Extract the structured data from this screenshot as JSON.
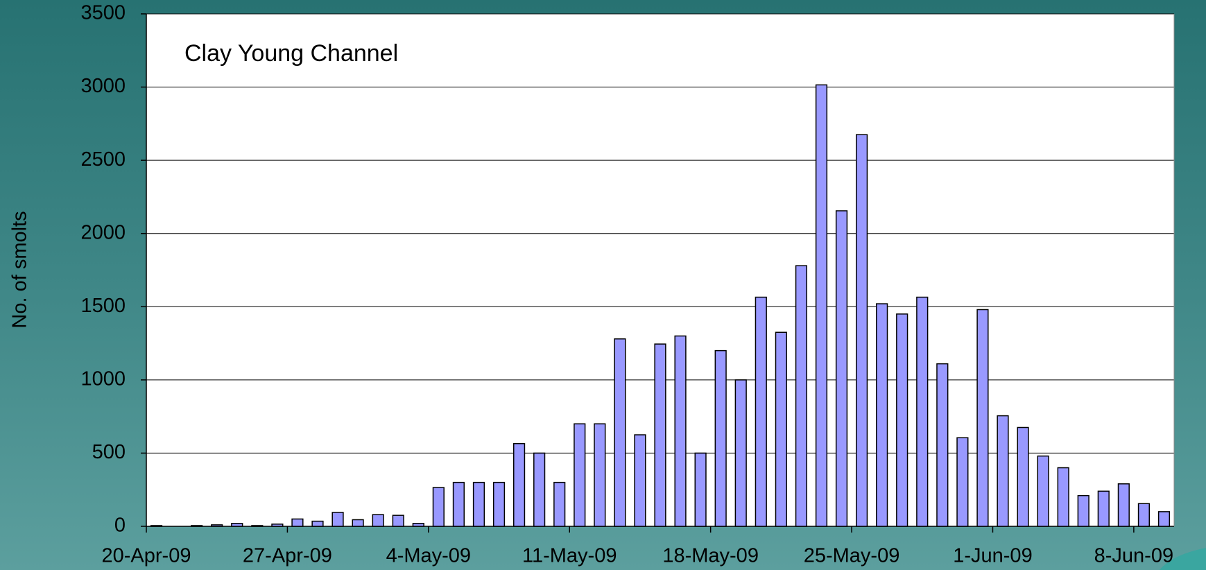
{
  "chart_data": {
    "type": "bar",
    "title": "Clay Young Channel",
    "y_label": "No. of smolts",
    "categories": [
      "20-Apr-09",
      null,
      null,
      null,
      null,
      null,
      null,
      "27-Apr-09",
      null,
      null,
      null,
      null,
      null,
      null,
      "4-May-09",
      null,
      null,
      null,
      null,
      null,
      null,
      "11-May-09",
      null,
      null,
      null,
      null,
      null,
      null,
      "18-May-09",
      null,
      null,
      null,
      null,
      null,
      null,
      "25-May-09",
      null,
      null,
      null,
      null,
      null,
      null,
      "1-Jun-09",
      null,
      null,
      null,
      null,
      null,
      null,
      "8-Jun-09",
      null
    ],
    "values": [
      5,
      0,
      5,
      10,
      20,
      5,
      15,
      50,
      35,
      95,
      45,
      80,
      75,
      20,
      265,
      300,
      300,
      300,
      565,
      500,
      300,
      700,
      700,
      1280,
      625,
      1245,
      1300,
      500,
      1200,
      1000,
      1565,
      1325,
      1780,
      3015,
      2155,
      2675,
      1520,
      1450,
      1565,
      1110,
      605,
      1480,
      755,
      675,
      480,
      400,
      210,
      240,
      290,
      155,
      100
    ],
    "color": "#9999ff",
    "ylim": [
      0,
      3500
    ],
    "yticks": [
      0,
      500,
      1000,
      1500,
      2000,
      2500,
      3000,
      3500
    ],
    "grid": true
  }
}
